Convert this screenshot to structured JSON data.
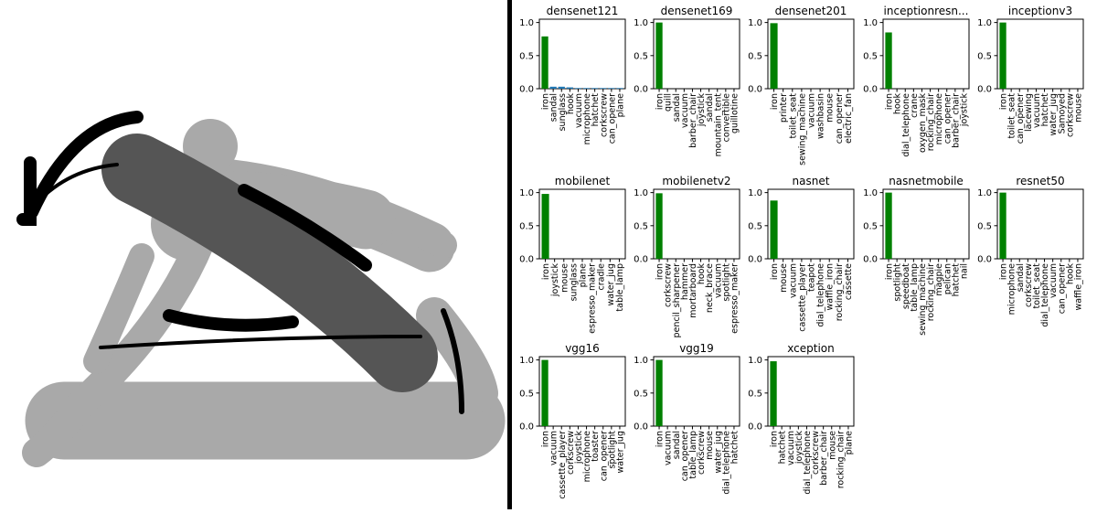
{
  "colors": {
    "bar": "#008000",
    "bar_alt": "#1f77b4",
    "sketch_light": "#a9a9a9",
    "sketch_dark": "#555555",
    "ink": "#000000"
  },
  "chart_data": [
    {
      "type": "bar",
      "title": "densenet121",
      "ylim": [
        0,
        1.05
      ],
      "yticks": [
        "0.0",
        "0.5",
        "1.0"
      ],
      "categories": [
        "iron",
        "sandal",
        "sunglass",
        "hook",
        "vacuum",
        "microphone",
        "hatchet",
        "corkscrew",
        "can_opener",
        "plane"
      ],
      "values": [
        0.79,
        0.03,
        0.03,
        0.02,
        0.01,
        0.01,
        0.01,
        0.01,
        0.01,
        0.01
      ]
    },
    {
      "type": "bar",
      "title": "densenet169",
      "ylim": [
        0,
        1.05
      ],
      "yticks": [
        "0.0",
        "0.5",
        "1.0"
      ],
      "categories": [
        "iron",
        "quill",
        "sandal",
        "vacuum",
        "barber_chair",
        "joystick",
        "sandal",
        "mountain_tent",
        "convertible",
        "guillotine"
      ],
      "values": [
        1.0,
        0,
        0,
        0,
        0,
        0,
        0,
        0,
        0,
        0
      ]
    },
    {
      "type": "bar",
      "title": "densenet201",
      "ylim": [
        0,
        1.05
      ],
      "yticks": [
        "0.0",
        "0.5",
        "1.0"
      ],
      "categories": [
        "iron",
        "printer",
        "toilet_seat",
        "sewing_machine",
        "vacuum",
        "washbasin",
        "mouse",
        "can_opener",
        "electric_fan"
      ],
      "values": [
        0.99,
        0,
        0,
        0,
        0,
        0,
        0,
        0,
        0
      ]
    },
    {
      "type": "bar",
      "title": "inceptionresn...",
      "ylim": [
        0,
        1.05
      ],
      "yticks": [
        "0.0",
        "0.5",
        "1.0"
      ],
      "categories": [
        "iron",
        "hook",
        "dial_telephone",
        "crane",
        "oxygen_mask",
        "rocking_chair",
        "microphone",
        "can_opener",
        "barber_chair",
        "joystick"
      ],
      "values": [
        0.85,
        0,
        0,
        0,
        0,
        0,
        0,
        0,
        0,
        0
      ]
    },
    {
      "type": "bar",
      "title": "inceptionv3",
      "ylim": [
        0,
        1.05
      ],
      "yticks": [
        "0.0",
        "0.5",
        "1.0"
      ],
      "categories": [
        "iron",
        "toilet_seat",
        "can_opener",
        "lacewing",
        "vacuum",
        "hatchet",
        "water_jug",
        "Samoyed",
        "corkscrew",
        "mouse"
      ],
      "values": [
        1.0,
        0,
        0,
        0,
        0,
        0,
        0,
        0,
        0,
        0
      ]
    },
    {
      "type": "bar",
      "title": "mobilenet",
      "ylim": [
        0,
        1.05
      ],
      "yticks": [
        "0.0",
        "0.5",
        "1.0"
      ],
      "categories": [
        "iron",
        "joystick",
        "mouse",
        "sunglass",
        "plane",
        "espresso_maker",
        "cradle",
        "water_jug",
        "table_lamp"
      ],
      "values": [
        0.98,
        0,
        0,
        0,
        0,
        0,
        0,
        0,
        0
      ]
    },
    {
      "type": "bar",
      "title": "mobilenetv2",
      "ylim": [
        0,
        1.05
      ],
      "yticks": [
        "0.0",
        "0.5",
        "1.0"
      ],
      "categories": [
        "iron",
        "corkscrew",
        "pencil_sharpener",
        "hammer",
        "mortarboard",
        "hook",
        "neck_brace",
        "vacuum",
        "spotlight",
        "espresso_maker"
      ],
      "values": [
        0.99,
        0,
        0,
        0,
        0,
        0,
        0,
        0,
        0,
        0
      ]
    },
    {
      "type": "bar",
      "title": "nasnet",
      "ylim": [
        0,
        1.05
      ],
      "yticks": [
        "0.0",
        "0.5",
        "1.0"
      ],
      "categories": [
        "iron",
        "mouse",
        "vacuum",
        "cassette_player",
        "teapot",
        "dial_telephone",
        "waffle_iron",
        "rocking_chair",
        "cassette"
      ],
      "values": [
        0.88,
        0,
        0,
        0,
        0,
        0,
        0,
        0,
        0
      ]
    },
    {
      "type": "bar",
      "title": "nasnetmobile",
      "ylim": [
        0,
        1.05
      ],
      "yticks": [
        "0.0",
        "0.5",
        "1.0"
      ],
      "categories": [
        "iron",
        "spotlight",
        "speedboat",
        "table_lamp",
        "sewing_machine",
        "rocking_chair",
        "magpie",
        "pelican",
        "hatchet",
        "nail"
      ],
      "values": [
        1.0,
        0,
        0,
        0,
        0,
        0,
        0,
        0,
        0,
        0
      ]
    },
    {
      "type": "bar",
      "title": "resnet50",
      "ylim": [
        0,
        1.05
      ],
      "yticks": [
        "0.0",
        "0.5",
        "1.0"
      ],
      "categories": [
        "iron",
        "microphone",
        "sandal",
        "corkscrew",
        "toilet_seat",
        "dial_telephone",
        "vacuum",
        "can_opener",
        "hook",
        "waffle_iron"
      ],
      "values": [
        1.0,
        0,
        0,
        0,
        0,
        0,
        0,
        0,
        0,
        0
      ]
    },
    {
      "type": "bar",
      "title": "vgg16",
      "ylim": [
        0,
        1.05
      ],
      "yticks": [
        "0.0",
        "0.5",
        "1.0"
      ],
      "categories": [
        "iron",
        "vacuum",
        "cassette_player",
        "corkscrew",
        "joystick",
        "microphone",
        "toaster",
        "can_opener",
        "spotlight",
        "water_jug"
      ],
      "values": [
        1.0,
        0,
        0,
        0,
        0,
        0,
        0,
        0,
        0,
        0
      ]
    },
    {
      "type": "bar",
      "title": "vgg19",
      "ylim": [
        0,
        1.05
      ],
      "yticks": [
        "0.0",
        "0.5",
        "1.0"
      ],
      "categories": [
        "iron",
        "vacuum",
        "sandal",
        "can_opener",
        "table_lamp",
        "corkscrew",
        "mouse",
        "water_jug",
        "dial_telephone",
        "hatchet"
      ],
      "values": [
        1.0,
        0,
        0,
        0,
        0,
        0,
        0,
        0,
        0,
        0
      ]
    },
    {
      "type": "bar",
      "title": "xception",
      "ylim": [
        0,
        1.05
      ],
      "yticks": [
        "0.0",
        "0.5",
        "1.0"
      ],
      "categories": [
        "iron",
        "hatchet",
        "vacuum",
        "joystick",
        "dial_telephone",
        "corkscrew",
        "barber_chair",
        "mouse",
        "rocking_chair",
        "plane"
      ],
      "values": [
        0.98,
        0,
        0,
        0,
        0,
        0,
        0,
        0,
        0,
        0
      ]
    }
  ]
}
